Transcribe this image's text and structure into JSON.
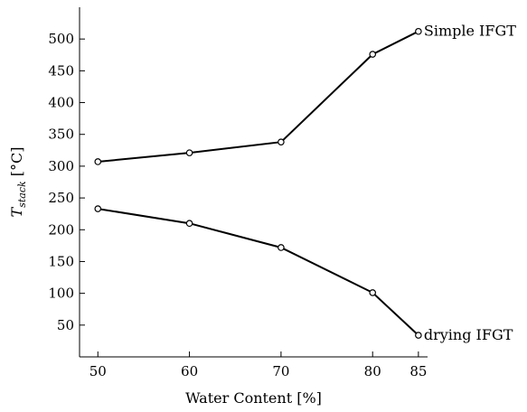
{
  "chart_data": {
    "type": "line",
    "xlabel": "Water Content [%]",
    "ylabel_main": "T",
    "ylabel_sub": "stack",
    "ylabel_unit": " [°C]",
    "x": [
      50,
      60,
      70,
      80,
      85
    ],
    "xticks": [
      50,
      60,
      70,
      80,
      85
    ],
    "yticks": [
      50,
      100,
      150,
      200,
      250,
      300,
      350,
      400,
      450,
      500
    ],
    "xlim": [
      48,
      86
    ],
    "ylim": [
      0,
      550
    ],
    "grid": false,
    "legend": "none",
    "series": [
      {
        "name": "Simple IFGT",
        "values": [
          307,
          321,
          338,
          476,
          512
        ]
      },
      {
        "name": "drying IFGT",
        "values": [
          233,
          210,
          172,
          101,
          34
        ]
      }
    ]
  }
}
